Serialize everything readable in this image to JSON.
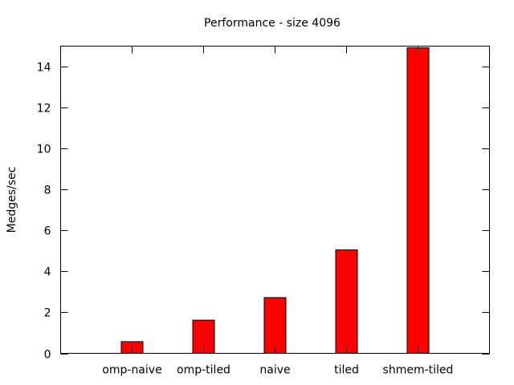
{
  "chart_data": {
    "type": "bar",
    "title": "Performance - size 4096",
    "xlabel": "",
    "ylabel": "Medges/sec",
    "categories": [
      "omp-naive",
      "omp-tiled",
      "naive",
      "tiled",
      "shmem-tiled"
    ],
    "values": [
      0.57,
      1.62,
      2.72,
      5.05,
      14.92
    ],
    "ylim": [
      0,
      15
    ],
    "yticks": [
      0,
      2,
      4,
      6,
      8,
      10,
      12,
      14
    ],
    "ytick_labels": [
      "0",
      "2",
      "4",
      "6",
      "8",
      "10",
      "12",
      "14"
    ],
    "grid": false,
    "legend": "none",
    "bar_color": "#ff0000"
  }
}
